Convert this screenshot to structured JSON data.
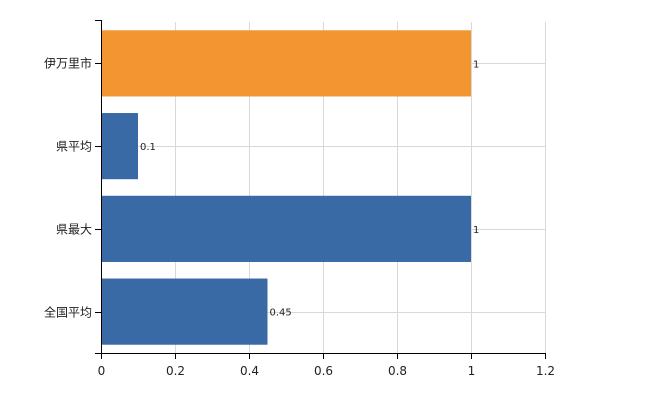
{
  "chart_data": {
    "type": "bar",
    "orientation": "horizontal",
    "categories": [
      "伊万里市",
      "県平均",
      "県最大",
      "全国平均"
    ],
    "values": [
      1,
      0.1,
      1,
      0.45
    ],
    "value_labels": [
      "1",
      "0.1",
      "1",
      "0.45"
    ],
    "bar_colors": [
      "#F39530",
      "#3A6AA5",
      "#3A6AA5",
      "#3A6AA5"
    ],
    "xlim": [
      0,
      1.2
    ],
    "xticks": [
      0,
      0.2,
      0.4,
      0.6,
      0.8,
      1,
      1.2
    ],
    "xtick_labels": [
      "0",
      "0.2",
      "0.4",
      "0.6",
      "0.8",
      "1",
      "1.2"
    ],
    "grid": true,
    "title": "",
    "xlabel": "",
    "ylabel": ""
  }
}
